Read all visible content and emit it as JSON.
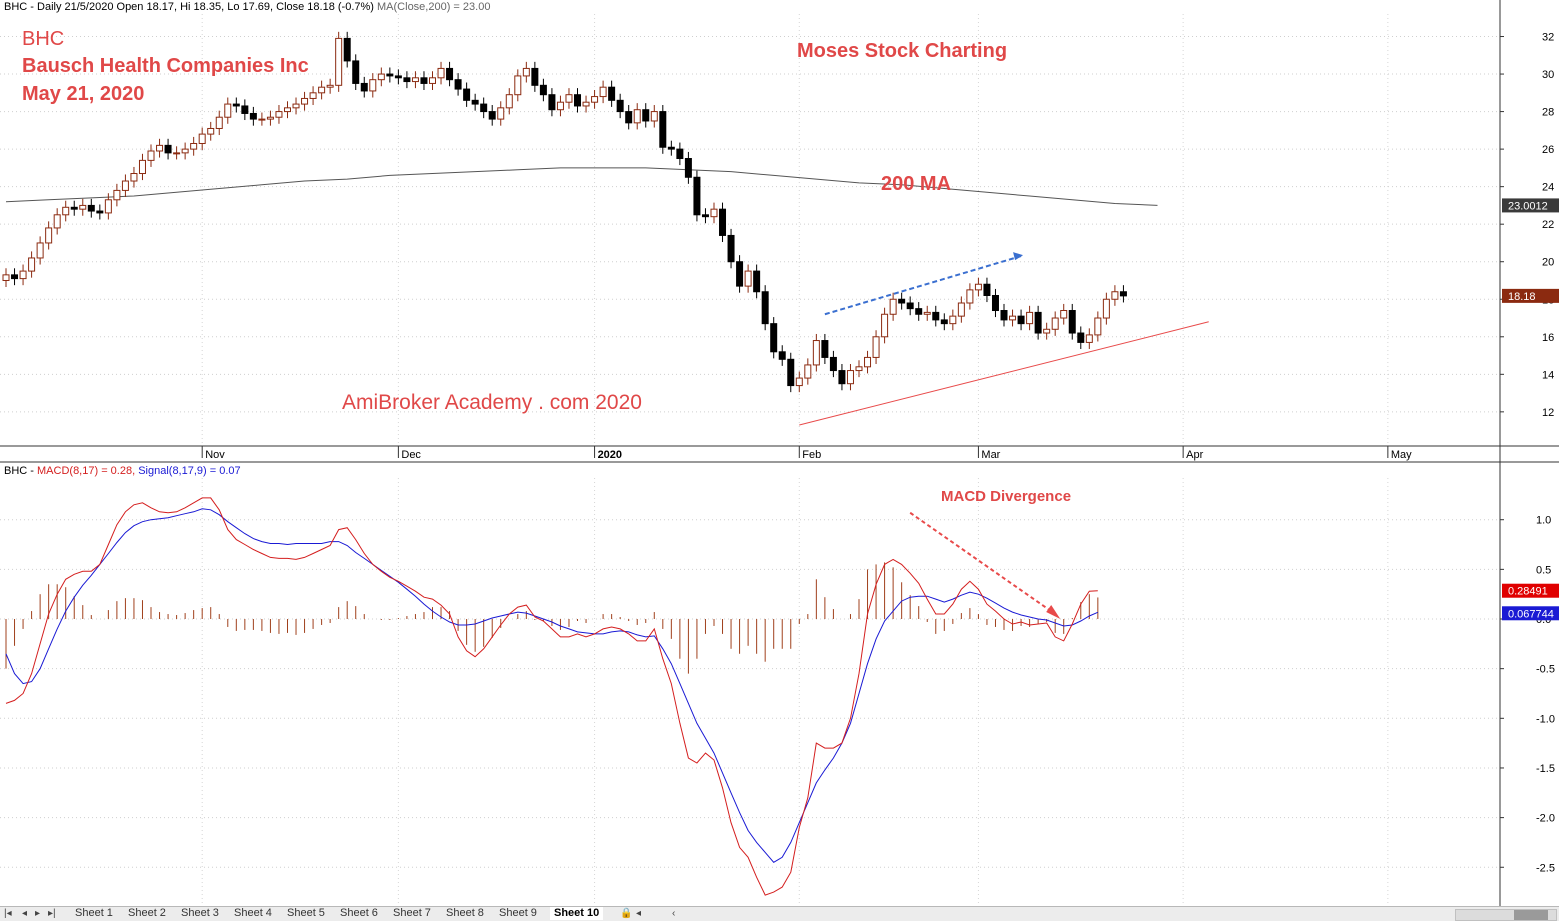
{
  "header": {
    "price_line_symbol": "BHC",
    "price_line_text": " - Daily 21/5/2020 Open 18.17, Hi 18.35, Lo 17.69, Close 18.18 (-0.7%) ",
    "ma_text": "MA(Close,200) = 23.00",
    "macd_symbol": "BHC",
    "macd_text": "MACD(8,17) = 0.28,",
    "signal_text": "Signal(8,17,9) = 0.07"
  },
  "annotations": {
    "ticker": "BHC",
    "company": "Bausch Health Companies Inc",
    "date": "May 21, 2020",
    "brand": "Moses Stock Charting",
    "ma_label": "200 MA",
    "site": "AmiBroker Academy . com  2020",
    "divergence": "MACD Divergence"
  },
  "badges": {
    "ma_value": "23.0012",
    "close_value": "18.18",
    "macd_value": "0.28491",
    "signal_value": "0.067744"
  },
  "colors": {
    "up_candle": "#8b2a10",
    "down_candle": "#000000",
    "ma_line": "#555555",
    "macd_line": "#d41e1e",
    "signal_line": "#1a1ad4",
    "histogram": "#a0401c",
    "annotation": "#e04848",
    "trend_up_arrow": "#3a6fd0",
    "support_line": "#e84a4a"
  },
  "tabs": [
    "Sheet 1",
    "Sheet 2",
    "Sheet 3",
    "Sheet 4",
    "Sheet 5",
    "Sheet 6",
    "Sheet 7",
    "Sheet 8",
    "Sheet 9",
    "Sheet 10"
  ],
  "active_tab": "Sheet 10",
  "chart_data": [
    {
      "type": "candlestick",
      "title": "BHC - Daily",
      "ylim": [
        10.5,
        33.2
      ],
      "y_ticks": [
        12,
        14,
        16,
        18,
        20,
        22,
        24,
        26,
        28,
        30,
        32
      ],
      "x_tick_labels": [
        "Nov",
        "Dec",
        "2020",
        "Feb",
        "Mar",
        "Apr",
        "May"
      ],
      "x_tick_index": [
        23,
        46,
        69,
        93,
        114,
        138,
        162
      ],
      "closes": [
        19.3,
        19.1,
        19.5,
        20.2,
        21.0,
        21.8,
        22.5,
        22.9,
        22.8,
        23.0,
        22.7,
        22.6,
        23.3,
        23.8,
        24.3,
        24.7,
        25.4,
        25.9,
        26.2,
        25.8,
        25.8,
        26.0,
        26.3,
        26.8,
        27.1,
        27.7,
        28.4,
        28.3,
        27.9,
        27.6,
        27.6,
        27.7,
        28.0,
        28.2,
        28.4,
        28.7,
        29.0,
        29.3,
        29.4,
        31.9,
        30.7,
        29.5,
        29.1,
        29.7,
        30.0,
        29.9,
        29.8,
        29.6,
        29.8,
        29.5,
        29.8,
        30.3,
        29.7,
        29.2,
        28.6,
        28.4,
        28.0,
        27.6,
        28.2,
        28.9,
        29.9,
        30.3,
        29.4,
        28.9,
        28.1,
        28.5,
        28.9,
        28.3,
        28.5,
        28.8,
        29.3,
        28.6,
        28.0,
        27.4,
        28.1,
        27.5,
        28.0,
        26.1,
        26.0,
        25.5,
        24.5,
        22.5,
        22.4,
        22.8,
        21.4,
        20.0,
        18.7,
        19.5,
        18.4,
        16.7,
        15.2,
        14.8,
        13.4,
        13.8,
        14.5,
        15.8,
        14.9,
        14.2,
        13.5,
        14.2,
        14.4,
        14.9,
        16.0,
        17.2,
        18.0,
        17.8,
        17.5,
        17.2,
        17.3,
        16.9,
        16.7,
        17.1,
        17.8,
        18.5,
        18.8,
        18.2,
        17.4,
        16.9,
        17.1,
        16.7,
        17.3,
        16.2,
        16.4,
        17.0,
        17.4,
        16.2,
        15.7,
        16.1,
        17.0,
        18.0,
        18.4,
        18.18
      ],
      "ma200": [
        23.2,
        23.3,
        23.4,
        23.5,
        23.7,
        23.9,
        24.1,
        24.3,
        24.4,
        24.6,
        24.7,
        24.8,
        24.9,
        25.0,
        25.0,
        25.0,
        24.9,
        24.8,
        24.6,
        24.4,
        24.2,
        24.1,
        23.9,
        23.7,
        23.5,
        23.3,
        23.1,
        23.0
      ],
      "ma200_start_index": 0,
      "ma200_step": 5
    },
    {
      "type": "macd",
      "params": "MACD(8,17), Signal(8,17,9)",
      "ylim": [
        -2.88,
        1.42
      ],
      "y_ticks": [
        1.0,
        0.5,
        0.0,
        -0.5,
        -1.0,
        -1.5,
        -2.0,
        -2.5
      ],
      "macd": [
        -0.85,
        -0.82,
        -0.75,
        -0.55,
        -0.25,
        0.05,
        0.25,
        0.4,
        0.45,
        0.48,
        0.48,
        0.55,
        0.75,
        0.95,
        1.08,
        1.15,
        1.17,
        1.12,
        1.08,
        1.07,
        1.08,
        1.12,
        1.17,
        1.22,
        1.22,
        1.1,
        0.9,
        0.8,
        0.75,
        0.7,
        0.66,
        0.62,
        0.61,
        0.61,
        0.6,
        0.62,
        0.66,
        0.7,
        0.74,
        0.9,
        0.92,
        0.8,
        0.66,
        0.55,
        0.48,
        0.42,
        0.38,
        0.33,
        0.28,
        0.22,
        0.2,
        0.14,
        0.05,
        -0.18,
        -0.32,
        -0.38,
        -0.3,
        -0.18,
        -0.06,
        0.05,
        0.12,
        0.14,
        0.02,
        -0.02,
        -0.1,
        -0.18,
        -0.18,
        -0.15,
        -0.18,
        -0.15,
        -0.1,
        -0.08,
        -0.1,
        -0.15,
        -0.22,
        -0.22,
        -0.1,
        -0.4,
        -0.65,
        -1.05,
        -1.4,
        -1.45,
        -1.35,
        -1.42,
        -1.7,
        -2.05,
        -2.3,
        -2.4,
        -2.6,
        -2.78,
        -2.75,
        -2.7,
        -2.55,
        -2.1,
        -1.8,
        -1.25,
        -1.3,
        -1.3,
        -1.25,
        -1.0,
        -0.55,
        0.05,
        0.35,
        0.55,
        0.6,
        0.55,
        0.46,
        0.36,
        0.2,
        0.05,
        0.05,
        0.15,
        0.3,
        0.38,
        0.3,
        0.15,
        0.08,
        0.0,
        -0.05,
        -0.03,
        -0.06,
        -0.05,
        -0.04,
        -0.18,
        -0.22,
        -0.05,
        0.15,
        0.28,
        0.28491
      ],
      "signal": [
        -0.35,
        -0.55,
        -0.65,
        -0.63,
        -0.5,
        -0.3,
        -0.1,
        0.08,
        0.22,
        0.34,
        0.44,
        0.55,
        0.66,
        0.77,
        0.87,
        0.94,
        0.98,
        1.0,
        1.01,
        1.02,
        1.04,
        1.06,
        1.08,
        1.11,
        1.1,
        1.05,
        0.98,
        0.92,
        0.86,
        0.81,
        0.78,
        0.76,
        0.76,
        0.75,
        0.76,
        0.76,
        0.76,
        0.76,
        0.78,
        0.78,
        0.74,
        0.67,
        0.61,
        0.55,
        0.49,
        0.43,
        0.37,
        0.3,
        0.23,
        0.15,
        0.08,
        0.02,
        -0.03,
        -0.06,
        -0.06,
        -0.05,
        -0.02,
        0.01,
        0.03,
        0.05,
        0.07,
        0.06,
        0.03,
        0.0,
        -0.03,
        -0.07,
        -0.1,
        -0.13,
        -0.14,
        -0.15,
        -0.15,
        -0.13,
        -0.12,
        -0.13,
        -0.16,
        -0.18,
        -0.17,
        -0.3,
        -0.45,
        -0.65,
        -0.85,
        -1.05,
        -1.2,
        -1.35,
        -1.55,
        -1.75,
        -1.95,
        -2.13,
        -2.25,
        -2.35,
        -2.45,
        -2.4,
        -2.25,
        -2.05,
        -1.85,
        -1.65,
        -1.52,
        -1.4,
        -1.25,
        -1.05,
        -0.75,
        -0.45,
        -0.2,
        -0.02,
        0.08,
        0.18,
        0.22,
        0.23,
        0.23,
        0.2,
        0.17,
        0.2,
        0.24,
        0.27,
        0.25,
        0.21,
        0.16,
        0.11,
        0.07,
        0.04,
        0.02,
        0.0,
        -0.01,
        -0.04,
        -0.07,
        -0.06,
        -0.02,
        0.03,
        0.067744
      ]
    }
  ]
}
